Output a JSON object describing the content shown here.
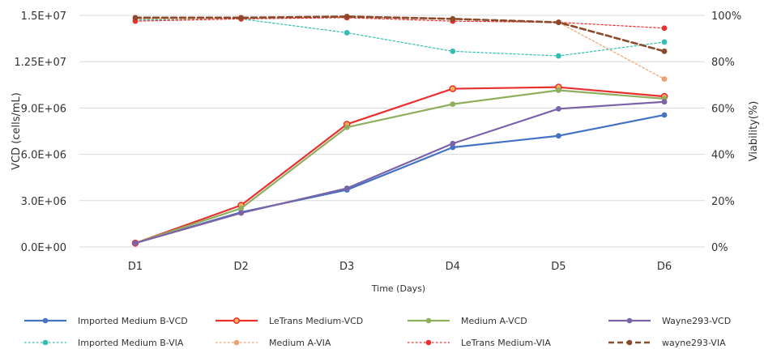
{
  "chart_data": {
    "type": "line",
    "title": "",
    "xlabel": "Time (Days)",
    "ylabel": "VCD (cells/mL)",
    "y2label": "Viability(%)",
    "categories": [
      "D1",
      "D2",
      "D3",
      "D4",
      "D5",
      "D6"
    ],
    "ylim": [
      0,
      15000000
    ],
    "y2lim": [
      0,
      100
    ],
    "yticks": [
      "0.0E+00",
      "3.0E+06",
      "6.0E+06",
      "9.0E+06",
      "1.25E+07",
      "1.5E+07"
    ],
    "y2ticks": [
      "0%",
      "20%",
      "40%",
      "60%",
      "80%",
      "100%"
    ],
    "grid": true,
    "legend_position": "bottom",
    "series": [
      {
        "name": "Imported Medium B-VCD",
        "axis": "left",
        "style": "solid",
        "color": "#4472C4",
        "values": [
          250000,
          2250000,
          3700000,
          6450000,
          7200000,
          8550000
        ]
      },
      {
        "name": "LeTrans Medium-VCD",
        "axis": "left",
        "style": "solid",
        "color": "#E8302E",
        "values": [
          250000,
          2700000,
          7950000,
          10250000,
          10350000,
          9750000
        ]
      },
      {
        "name": "Medium A-VCD",
        "axis": "left",
        "style": "solid",
        "color": "#8FAF5E",
        "values": [
          250000,
          2500000,
          7750000,
          9250000,
          10150000,
          9600000
        ]
      },
      {
        "name": "Wayne293-VCD",
        "axis": "left",
        "style": "solid",
        "color": "#7B63A8",
        "values": [
          250000,
          2200000,
          3800000,
          6700000,
          8950000,
          9400000
        ]
      },
      {
        "name": "Imported Medium B-VIA",
        "axis": "right",
        "style": "dotted",
        "color": "#33BFB0",
        "values": [
          98,
          98.5,
          92.5,
          84.5,
          82.5,
          88.5
        ]
      },
      {
        "name": "Medium A-VIA",
        "axis": "right",
        "style": "dotted",
        "color": "#F0A070",
        "values": [
          98.5,
          98.5,
          99.5,
          98.5,
          97,
          72.5
        ]
      },
      {
        "name": "LeTrans Medium-VIA",
        "axis": "right",
        "style": "dotted",
        "color": "#E8302E",
        "values": [
          97.5,
          98.5,
          99,
          97.5,
          97,
          94.5
        ]
      },
      {
        "name": "wayne293-VIA",
        "axis": "right",
        "style": "dashed",
        "color": "#8B4A2B",
        "values": [
          99,
          99,
          99.5,
          98.5,
          97,
          84.5
        ]
      }
    ]
  }
}
